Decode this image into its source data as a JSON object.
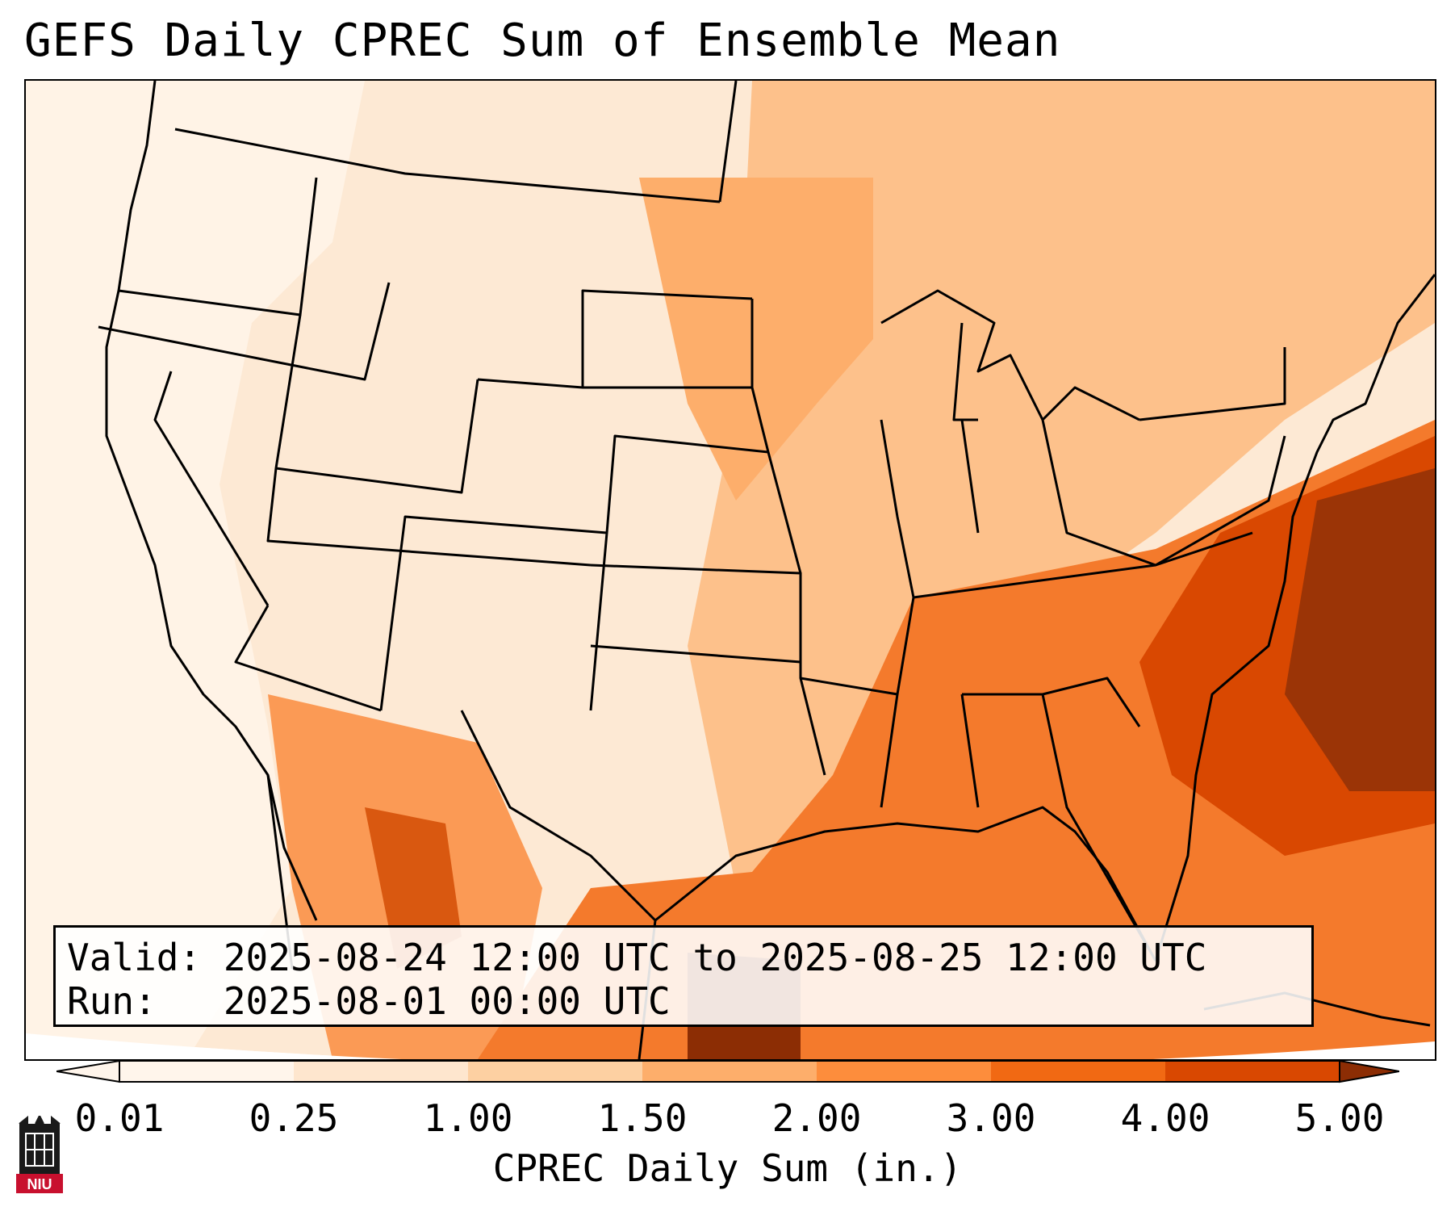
{
  "title": "GEFS Daily CPREC Sum of Ensemble Mean",
  "info": {
    "valid_line": "Valid: 2025-08-24 12:00 UTC to 2025-08-25 12:00 UTC",
    "run_line": "Run:   2025-08-01 00:00 UTC"
  },
  "colorbar": {
    "label": "CPREC Daily Sum (in.)",
    "ticks": [
      "0.01",
      "0.25",
      "1.00",
      "1.50",
      "2.00",
      "3.00",
      "4.00",
      "5.00"
    ],
    "colors": [
      "#fff5eb",
      "#fee6ce",
      "#fdd0a2",
      "#fdae6b",
      "#fd8d3c",
      "#f16913",
      "#d94801",
      "#8c2d04"
    ]
  },
  "logo": {
    "text": "NIU"
  }
}
